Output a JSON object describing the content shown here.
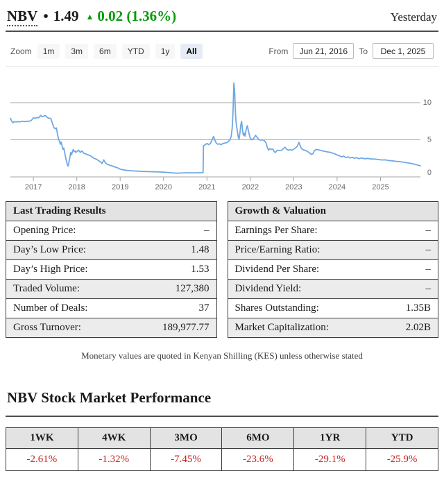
{
  "header": {
    "symbol": "NBV",
    "separator": "•",
    "price": "1.49",
    "arrow": "▲",
    "change": "0.02",
    "change_pct": "(1.36%)",
    "period_label": "Yesterday",
    "up_color": "#0a9b0a"
  },
  "toolbar": {
    "zoom_label": "Zoom",
    "buttons": [
      "1m",
      "3m",
      "6m",
      "YTD",
      "1y",
      "All"
    ],
    "selected": "All",
    "from_label": "From",
    "from_value": "Jun 21, 2016",
    "to_label": "To",
    "to_value": "Dec 1, 2025"
  },
  "chart_data": {
    "type": "line",
    "title": "",
    "xlabel": "",
    "ylabel": "",
    "x_range": [
      2016.47,
      2025.92
    ],
    "y_range": [
      0,
      13.5
    ],
    "y_ticks": [
      0,
      5,
      10
    ],
    "x_ticks": [
      2017,
      2018,
      2019,
      2020,
      2021,
      2022,
      2023,
      2024,
      2025
    ],
    "x_tick_labels": [
      "2017",
      "2018",
      "2019",
      "2020",
      "2021",
      "2022",
      "2023",
      "2024",
      "2025"
    ],
    "grid": true,
    "legend_position": "none",
    "grid_color": "#a6a6a6",
    "label_color": "#666666",
    "series": [
      {
        "name": "NBV price (KES)",
        "color": "#6fa8e3",
        "points": [
          [
            2016.47,
            7.9
          ],
          [
            2016.5,
            7.5
          ],
          [
            2016.53,
            7.3
          ],
          [
            2016.56,
            7.45
          ],
          [
            2016.6,
            7.4
          ],
          [
            2016.64,
            7.45
          ],
          [
            2016.68,
            7.4
          ],
          [
            2016.72,
            7.45
          ],
          [
            2016.76,
            7.5
          ],
          [
            2016.8,
            7.45
          ],
          [
            2016.85,
            7.5
          ],
          [
            2016.9,
            7.5
          ],
          [
            2016.95,
            7.6
          ],
          [
            2017.0,
            7.95
          ],
          [
            2017.04,
            7.9
          ],
          [
            2017.08,
            8.0
          ],
          [
            2017.12,
            7.95
          ],
          [
            2017.17,
            8.3
          ],
          [
            2017.2,
            8.1
          ],
          [
            2017.24,
            8.2
          ],
          [
            2017.28,
            8.25
          ],
          [
            2017.32,
            8.0
          ],
          [
            2017.36,
            7.9
          ],
          [
            2017.4,
            7.9
          ],
          [
            2017.44,
            7.2
          ],
          [
            2017.47,
            6.7
          ],
          [
            2017.5,
            6.5
          ],
          [
            2017.53,
            6.6
          ],
          [
            2017.56,
            5.6
          ],
          [
            2017.58,
            5.1
          ],
          [
            2017.6,
            4.8
          ],
          [
            2017.62,
            4.4
          ],
          [
            2017.64,
            4.7
          ],
          [
            2017.66,
            4.2
          ],
          [
            2017.68,
            3.7
          ],
          [
            2017.7,
            3.9
          ],
          [
            2017.72,
            3.3
          ],
          [
            2017.74,
            2.7
          ],
          [
            2017.76,
            2.2
          ],
          [
            2017.78,
            1.7
          ],
          [
            2017.8,
            1.45
          ],
          [
            2017.82,
            2.0
          ],
          [
            2017.84,
            2.6
          ],
          [
            2017.86,
            3.3
          ],
          [
            2017.88,
            3.0
          ],
          [
            2017.9,
            3.4
          ],
          [
            2017.92,
            3.7
          ],
          [
            2017.94,
            3.4
          ],
          [
            2017.96,
            3.5
          ],
          [
            2017.98,
            3.3
          ],
          [
            2018.0,
            3.4
          ],
          [
            2018.04,
            3.6
          ],
          [
            2018.08,
            3.3
          ],
          [
            2018.12,
            3.5
          ],
          [
            2018.16,
            3.2
          ],
          [
            2018.2,
            3.1
          ],
          [
            2018.25,
            3.0
          ],
          [
            2018.3,
            2.9
          ],
          [
            2018.35,
            2.7
          ],
          [
            2018.4,
            2.5
          ],
          [
            2018.45,
            2.4
          ],
          [
            2018.5,
            2.2
          ],
          [
            2018.55,
            2.0
          ],
          [
            2018.58,
            1.8
          ],
          [
            2018.62,
            2.3
          ],
          [
            2018.66,
            1.9
          ],
          [
            2018.7,
            1.7
          ],
          [
            2018.75,
            1.6
          ],
          [
            2018.8,
            1.5
          ],
          [
            2018.85,
            1.4
          ],
          [
            2018.9,
            1.3
          ],
          [
            2018.95,
            1.2
          ],
          [
            2019.0,
            1.05
          ],
          [
            2019.1,
            0.92
          ],
          [
            2019.2,
            0.85
          ],
          [
            2019.3,
            0.8
          ],
          [
            2019.4,
            0.78
          ],
          [
            2019.5,
            0.75
          ],
          [
            2019.6,
            0.72
          ],
          [
            2019.7,
            0.7
          ],
          [
            2019.8,
            0.68
          ],
          [
            2019.9,
            0.66
          ],
          [
            2020.0,
            0.64
          ],
          [
            2020.1,
            0.6
          ],
          [
            2020.2,
            0.55
          ],
          [
            2020.3,
            0.5
          ],
          [
            2020.4,
            0.52
          ],
          [
            2020.5,
            0.55
          ],
          [
            2020.6,
            0.55
          ],
          [
            2020.7,
            0.55
          ],
          [
            2020.8,
            0.56
          ],
          [
            2020.88,
            0.57
          ],
          [
            2020.91,
            0.58
          ],
          [
            2020.92,
            4.2
          ],
          [
            2020.96,
            4.35
          ],
          [
            2021.0,
            4.5
          ],
          [
            2021.04,
            4.35
          ],
          [
            2021.08,
            4.5
          ],
          [
            2021.12,
            5.0
          ],
          [
            2021.15,
            5.45
          ],
          [
            2021.18,
            5.0
          ],
          [
            2021.21,
            4.6
          ],
          [
            2021.25,
            4.4
          ],
          [
            2021.29,
            4.45
          ],
          [
            2021.33,
            4.35
          ],
          [
            2021.37,
            4.5
          ],
          [
            2021.41,
            4.55
          ],
          [
            2021.45,
            4.6
          ],
          [
            2021.49,
            4.75
          ],
          [
            2021.53,
            5.0
          ],
          [
            2021.56,
            5.5
          ],
          [
            2021.58,
            6.5
          ],
          [
            2021.6,
            8.5
          ],
          [
            2021.62,
            12.65
          ],
          [
            2021.64,
            11.4
          ],
          [
            2021.66,
            8.2
          ],
          [
            2021.68,
            6.9
          ],
          [
            2021.7,
            6.2
          ],
          [
            2021.72,
            5.4
          ],
          [
            2021.74,
            5.1
          ],
          [
            2021.76,
            5.9
          ],
          [
            2021.78,
            7.0
          ],
          [
            2021.8,
            7.5
          ],
          [
            2021.82,
            6.3
          ],
          [
            2021.84,
            5.6
          ],
          [
            2021.86,
            5.9
          ],
          [
            2021.88,
            5.5
          ],
          [
            2021.9,
            6.3
          ],
          [
            2021.93,
            6.9
          ],
          [
            2021.96,
            6.1
          ],
          [
            2021.98,
            5.6
          ],
          [
            2022.0,
            5.2
          ],
          [
            2022.04,
            5.0
          ],
          [
            2022.08,
            5.2
          ],
          [
            2022.12,
            5.6
          ],
          [
            2022.16,
            5.3
          ],
          [
            2022.2,
            5.0
          ],
          [
            2022.24,
            4.95
          ],
          [
            2022.28,
            5.0
          ],
          [
            2022.32,
            4.9
          ],
          [
            2022.36,
            4.6
          ],
          [
            2022.39,
            4.0
          ],
          [
            2022.42,
            3.6
          ],
          [
            2022.45,
            3.8
          ],
          [
            2022.48,
            3.7
          ],
          [
            2022.52,
            3.75
          ],
          [
            2022.55,
            3.4
          ],
          [
            2022.58,
            3.3
          ],
          [
            2022.61,
            3.55
          ],
          [
            2022.64,
            3.6
          ],
          [
            2022.68,
            3.55
          ],
          [
            2022.72,
            3.6
          ],
          [
            2022.76,
            3.8
          ],
          [
            2022.8,
            4.0
          ],
          [
            2022.84,
            3.7
          ],
          [
            2022.88,
            3.6
          ],
          [
            2022.92,
            3.65
          ],
          [
            2022.96,
            3.6
          ],
          [
            2023.0,
            3.75
          ],
          [
            2023.04,
            3.9
          ],
          [
            2023.08,
            4.1
          ],
          [
            2023.12,
            4.65
          ],
          [
            2023.16,
            4.0
          ],
          [
            2023.2,
            3.7
          ],
          [
            2023.25,
            3.6
          ],
          [
            2023.3,
            3.5
          ],
          [
            2023.35,
            3.3
          ],
          [
            2023.4,
            3.05
          ],
          [
            2023.44,
            3.1
          ],
          [
            2023.48,
            3.55
          ],
          [
            2023.52,
            3.7
          ],
          [
            2023.56,
            3.65
          ],
          [
            2023.6,
            3.6
          ],
          [
            2023.65,
            3.55
          ],
          [
            2023.7,
            3.45
          ],
          [
            2023.75,
            3.4
          ],
          [
            2023.8,
            3.35
          ],
          [
            2023.85,
            3.3
          ],
          [
            2023.9,
            3.2
          ],
          [
            2023.95,
            3.1
          ],
          [
            2024.0,
            2.95
          ],
          [
            2024.05,
            2.85
          ],
          [
            2024.1,
            2.7
          ],
          [
            2024.15,
            2.8
          ],
          [
            2024.2,
            2.6
          ],
          [
            2024.25,
            2.7
          ],
          [
            2024.3,
            2.55
          ],
          [
            2024.35,
            2.65
          ],
          [
            2024.4,
            2.5
          ],
          [
            2024.45,
            2.6
          ],
          [
            2024.5,
            2.45
          ],
          [
            2024.55,
            2.55
          ],
          [
            2024.6,
            2.5
          ],
          [
            2024.65,
            2.45
          ],
          [
            2024.7,
            2.5
          ],
          [
            2024.75,
            2.45
          ],
          [
            2024.8,
            2.4
          ],
          [
            2024.85,
            2.42
          ],
          [
            2024.9,
            2.38
          ],
          [
            2024.95,
            2.35
          ],
          [
            2025.0,
            2.3
          ],
          [
            2025.05,
            2.28
          ],
          [
            2025.1,
            2.3
          ],
          [
            2025.15,
            2.25
          ],
          [
            2025.2,
            2.2
          ],
          [
            2025.25,
            2.18
          ],
          [
            2025.3,
            2.15
          ],
          [
            2025.35,
            2.1
          ],
          [
            2025.4,
            2.08
          ],
          [
            2025.45,
            2.05
          ],
          [
            2025.5,
            2.0
          ],
          [
            2025.55,
            1.97
          ],
          [
            2025.6,
            1.92
          ],
          [
            2025.65,
            1.87
          ],
          [
            2025.7,
            1.82
          ],
          [
            2025.75,
            1.75
          ],
          [
            2025.8,
            1.68
          ],
          [
            2025.85,
            1.62
          ],
          [
            2025.88,
            1.56
          ],
          [
            2025.92,
            1.49
          ]
        ]
      }
    ]
  },
  "tables": {
    "last_trading": {
      "title": "Last Trading Results",
      "rows": [
        {
          "label": "Opening Price:",
          "value": "–"
        },
        {
          "label": "Day’s Low Price:",
          "value": "1.48"
        },
        {
          "label": "Day’s High Price:",
          "value": "1.53"
        },
        {
          "label": "Traded Volume:",
          "value": "127,380"
        },
        {
          "label": "Number of Deals:",
          "value": "37"
        },
        {
          "label": "Gross Turnover:",
          "value": "189,977.77"
        }
      ]
    },
    "growth_valuation": {
      "title": "Growth & Valuation",
      "rows": [
        {
          "label": "Earnings Per Share:",
          "value": "–"
        },
        {
          "label": "Price/Earning Ratio:",
          "value": "–"
        },
        {
          "label": "Dividend Per Share:",
          "value": "–"
        },
        {
          "label": "Dividend Yield:",
          "value": "–"
        },
        {
          "label": "Shares Outstanding:",
          "value": "1.35B"
        },
        {
          "label": "Market Capitalization:",
          "value": "2.02B"
        }
      ]
    }
  },
  "note": "Monetary values are quoted in Kenyan Shilling (KES) unless otherwise stated",
  "performance": {
    "heading": "NBV Stock Market Performance",
    "columns": [
      "1WK",
      "4WK",
      "3MO",
      "6MO",
      "1YR",
      "YTD"
    ],
    "values": [
      "-2.61%",
      "-1.32%",
      "-7.45%",
      "-23.6%",
      "-29.1%",
      "-25.9%"
    ],
    "negative_color": "#cc2222"
  }
}
